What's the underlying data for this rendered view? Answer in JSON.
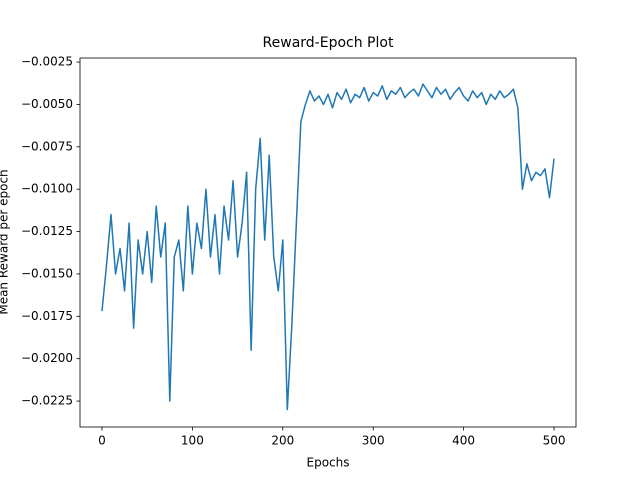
{
  "chart_data": {
    "type": "line",
    "title": "Reward-Epoch Plot",
    "x_label": "Epochs",
    "y_label": "Mean Reward per epoch",
    "x": [
      0,
      5,
      10,
      15,
      20,
      25,
      30,
      35,
      40,
      45,
      50,
      55,
      60,
      65,
      70,
      75,
      80,
      85,
      90,
      95,
      100,
      105,
      110,
      115,
      120,
      125,
      130,
      135,
      140,
      145,
      150,
      155,
      160,
      165,
      170,
      175,
      180,
      185,
      190,
      195,
      200,
      205,
      210,
      215,
      220,
      225,
      230,
      235,
      240,
      245,
      250,
      255,
      260,
      265,
      270,
      275,
      280,
      285,
      290,
      295,
      300,
      305,
      310,
      315,
      320,
      325,
      330,
      335,
      340,
      345,
      350,
      355,
      360,
      365,
      370,
      375,
      380,
      385,
      390,
      395,
      400,
      405,
      410,
      415,
      420,
      425,
      430,
      435,
      440,
      445,
      450,
      455,
      460,
      465,
      470,
      475,
      480,
      485,
      490,
      495,
      500
    ],
    "series": [
      {
        "name": "reward",
        "color": "#1f77b4",
        "values": [
          -0.0172,
          -0.0145,
          -0.0115,
          -0.015,
          -0.0135,
          -0.016,
          -0.012,
          -0.0182,
          -0.013,
          -0.015,
          -0.0125,
          -0.0155,
          -0.011,
          -0.014,
          -0.012,
          -0.0225,
          -0.014,
          -0.013,
          -0.016,
          -0.011,
          -0.015,
          -0.012,
          -0.0135,
          -0.01,
          -0.014,
          -0.0115,
          -0.015,
          -0.011,
          -0.013,
          -0.0095,
          -0.014,
          -0.012,
          -0.009,
          -0.0195,
          -0.01,
          -0.007,
          -0.013,
          -0.008,
          -0.014,
          -0.016,
          -0.013,
          -0.023,
          -0.018,
          -0.012,
          -0.006,
          -0.005,
          -0.0042,
          -0.0048,
          -0.0045,
          -0.005,
          -0.0044,
          -0.0052,
          -0.0043,
          -0.0047,
          -0.0041,
          -0.0049,
          -0.0044,
          -0.0046,
          -0.004,
          -0.0048,
          -0.0043,
          -0.0045,
          -0.0039,
          -0.0047,
          -0.0042,
          -0.0044,
          -0.004,
          -0.0046,
          -0.0043,
          -0.0041,
          -0.0045,
          -0.0038,
          -0.0042,
          -0.0046,
          -0.004,
          -0.0044,
          -0.0041,
          -0.0047,
          -0.0043,
          -0.004,
          -0.0045,
          -0.0048,
          -0.0042,
          -0.0046,
          -0.0043,
          -0.005,
          -0.0044,
          -0.0047,
          -0.0042,
          -0.0046,
          -0.0044,
          -0.0041,
          -0.0052,
          -0.01,
          -0.0085,
          -0.0095,
          -0.009,
          -0.0092,
          -0.0088,
          -0.0105,
          -0.0082
        ]
      }
    ],
    "xlim": [
      -24.3,
      524.3
    ],
    "ylim": [
      -0.02403,
      -0.00226
    ],
    "xticks": [
      0,
      100,
      200,
      300,
      400,
      500
    ],
    "yticks": [
      {
        "value": -0.0225,
        "label": "−0.0225"
      },
      {
        "value": -0.02,
        "label": "−0.0200"
      },
      {
        "value": -0.0175,
        "label": "−0.0175"
      },
      {
        "value": -0.015,
        "label": "−0.0150"
      },
      {
        "value": -0.0125,
        "label": "−0.0125"
      },
      {
        "value": -0.01,
        "label": "−0.0100"
      },
      {
        "value": -0.0075,
        "label": "−0.0075"
      },
      {
        "value": -0.005,
        "label": "−0.0050"
      },
      {
        "value": -0.0025,
        "label": "−0.0025"
      }
    ],
    "grid": false
  }
}
